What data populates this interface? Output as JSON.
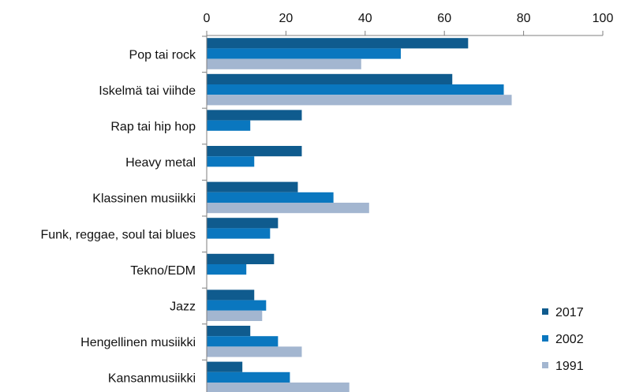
{
  "chart_data": {
    "type": "bar",
    "orientation": "horizontal",
    "categories": [
      "Pop tai rock",
      "Iskelmä tai viihde",
      "Rap tai hip hop",
      "Heavy metal",
      "Klassinen musiikki",
      "Funk, reggae, soul tai blues",
      "Tekno/EDM",
      "Jazz",
      "Hengellinen musiikki",
      "Kansanmusiikki"
    ],
    "series": [
      {
        "name": "2017",
        "color": "#0f5b8e",
        "values": [
          66,
          62,
          24,
          24,
          23,
          18,
          17,
          12,
          11,
          9
        ]
      },
      {
        "name": "2002",
        "color": "#0a77bf",
        "values": [
          49,
          75,
          11,
          12,
          32,
          16,
          10,
          15,
          18,
          21
        ]
      },
      {
        "name": "1991",
        "color": "#a3b6d0",
        "values": [
          39,
          77,
          null,
          null,
          41,
          null,
          null,
          14,
          24,
          36
        ]
      }
    ],
    "xlim": [
      0,
      100
    ],
    "xticks": [
      "0",
      "20",
      "40",
      "60",
      "80",
      "100"
    ],
    "xaxis_position": "top",
    "grid": false,
    "legend_position": "bottom-right"
  }
}
